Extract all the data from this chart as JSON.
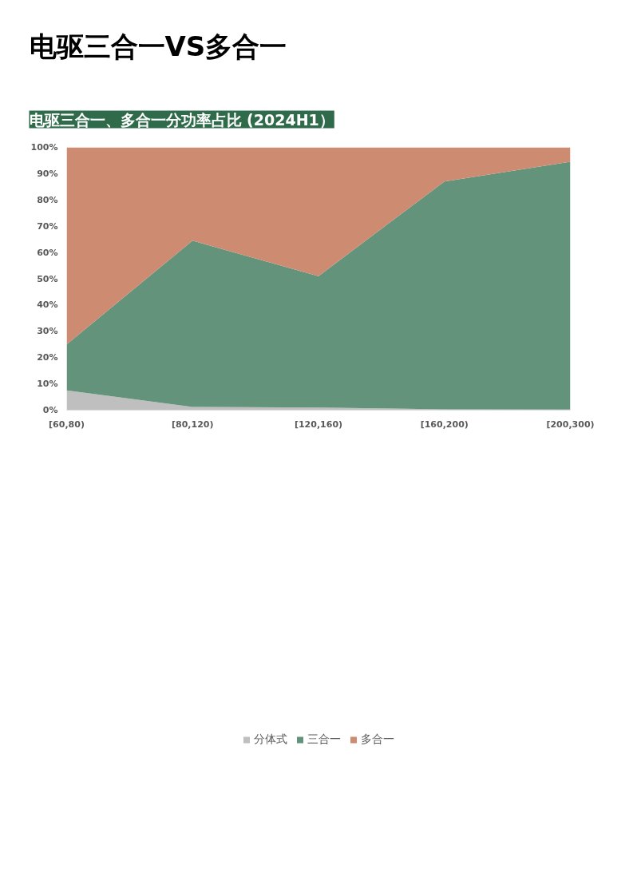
{
  "chart_data": {
    "type": "area",
    "stacked": true,
    "title": "电驱三合一VS多合一",
    "subtitle": "电驱三合一、多合一分功率占比 (2024H1）",
    "categories": [
      "[60,80)",
      "[80,120)",
      "[120,160)",
      "[160,200)",
      "[200,300)"
    ],
    "series": [
      {
        "name": "分体式",
        "color": "#bfbfbf",
        "values": [
          7.5,
          1.2,
          1.0,
          0.3,
          0.2
        ]
      },
      {
        "name": "三合一",
        "color": "#64937c",
        "values": [
          17.5,
          63.3,
          50,
          86.7,
          94.3
        ]
      },
      {
        "name": "多合一",
        "color": "#cd8b72",
        "values": [
          75,
          35.5,
          49,
          13,
          5.5
        ]
      }
    ],
    "ylim": [
      0,
      100
    ],
    "yticks": [
      {
        "value": 0,
        "label": "0%"
      },
      {
        "value": 10,
        "label": "10%"
      },
      {
        "value": 20,
        "label": "20%"
      },
      {
        "value": 30,
        "label": "30%"
      },
      {
        "value": 40,
        "label": "40%"
      },
      {
        "value": 50,
        "label": "50%"
      },
      {
        "value": 60,
        "label": "60%"
      },
      {
        "value": 70,
        "label": "70%"
      },
      {
        "value": 80,
        "label": "80%"
      },
      {
        "value": 90,
        "label": "90%"
      },
      {
        "value": 100,
        "label": "100%"
      }
    ],
    "grid": false,
    "legend": "bottom"
  }
}
